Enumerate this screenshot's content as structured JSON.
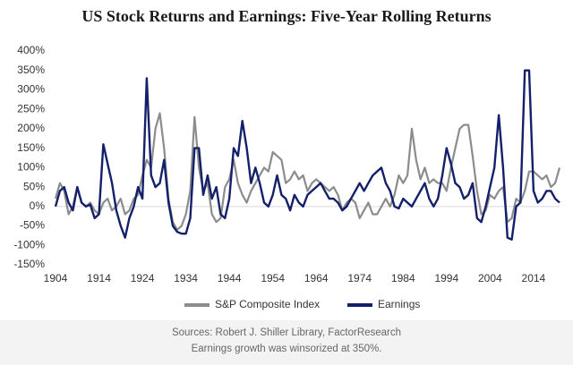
{
  "chart_data": {
    "type": "line",
    "title": "US Stock Returns and Earnings: Five-Year Rolling Returns",
    "x": [
      1904,
      1905,
      1906,
      1907,
      1908,
      1909,
      1910,
      1911,
      1912,
      1913,
      1914,
      1915,
      1916,
      1917,
      1918,
      1919,
      1920,
      1921,
      1922,
      1923,
      1924,
      1925,
      1926,
      1927,
      1928,
      1929,
      1930,
      1931,
      1932,
      1933,
      1934,
      1935,
      1936,
      1937,
      1938,
      1939,
      1940,
      1941,
      1942,
      1943,
      1944,
      1945,
      1946,
      1947,
      1948,
      1949,
      1950,
      1951,
      1952,
      1953,
      1954,
      1955,
      1956,
      1957,
      1958,
      1959,
      1960,
      1961,
      1962,
      1963,
      1964,
      1965,
      1966,
      1967,
      1968,
      1969,
      1970,
      1971,
      1972,
      1973,
      1974,
      1975,
      1976,
      1977,
      1978,
      1979,
      1980,
      1981,
      1982,
      1983,
      1984,
      1985,
      1986,
      1987,
      1988,
      1989,
      1990,
      1991,
      1992,
      1993,
      1994,
      1995,
      1996,
      1997,
      1998,
      1999,
      2000,
      2001,
      2002,
      2003,
      2004,
      2005,
      2006,
      2007,
      2008,
      2009,
      2010,
      2011,
      2012,
      2013,
      2014,
      2015,
      2016,
      2017,
      2018,
      2019,
      2020
    ],
    "series": [
      {
        "name": "S&P Composite Index",
        "color": "#8c8c8c",
        "values": [
          20,
          60,
          40,
          -20,
          0,
          50,
          10,
          0,
          10,
          -10,
          -20,
          10,
          20,
          -10,
          0,
          20,
          -20,
          -10,
          20,
          30,
          80,
          120,
          100,
          200,
          240,
          150,
          20,
          -40,
          -60,
          -50,
          -20,
          40,
          230,
          100,
          40,
          60,
          -20,
          -40,
          -30,
          50,
          70,
          120,
          60,
          30,
          10,
          40,
          60,
          80,
          100,
          90,
          140,
          130,
          120,
          60,
          70,
          90,
          70,
          80,
          40,
          60,
          70,
          60,
          50,
          40,
          50,
          30,
          -10,
          10,
          20,
          10,
          -30,
          -10,
          10,
          -20,
          -20,
          0,
          20,
          0,
          30,
          80,
          60,
          80,
          200,
          120,
          70,
          100,
          60,
          70,
          60,
          60,
          40,
          100,
          150,
          200,
          210,
          210,
          130,
          40,
          -20,
          -10,
          30,
          20,
          40,
          50,
          -40,
          -30,
          20,
          10,
          40,
          90,
          90,
          80,
          70,
          80,
          50,
          60,
          100
        ]
      },
      {
        "name": "Earnings",
        "color": "#14206a",
        "values": [
          0,
          40,
          50,
          10,
          -10,
          50,
          10,
          0,
          5,
          -30,
          -20,
          160,
          110,
          60,
          -10,
          -50,
          -80,
          -30,
          0,
          50,
          20,
          330,
          80,
          50,
          60,
          120,
          10,
          -50,
          -65,
          -70,
          -70,
          -30,
          150,
          150,
          30,
          80,
          20,
          50,
          -20,
          -30,
          20,
          150,
          130,
          220,
          150,
          60,
          100,
          60,
          10,
          0,
          30,
          80,
          30,
          20,
          -10,
          30,
          10,
          0,
          30,
          40,
          50,
          60,
          40,
          20,
          20,
          10,
          -10,
          0,
          20,
          40,
          60,
          40,
          60,
          80,
          90,
          100,
          60,
          40,
          0,
          -5,
          20,
          10,
          0,
          20,
          40,
          60,
          20,
          0,
          20,
          80,
          150,
          110,
          60,
          50,
          20,
          30,
          60,
          -30,
          -40,
          0,
          50,
          100,
          235,
          100,
          -80,
          -85,
          0,
          10,
          350,
          350,
          40,
          10,
          20,
          40,
          40,
          20,
          10
        ]
      }
    ],
    "xlim": [
      1904,
      2020
    ],
    "xticks": [
      1904,
      1914,
      1924,
      1934,
      1944,
      1954,
      1964,
      1974,
      1984,
      1994,
      2004,
      2014
    ],
    "ylim": [
      -150,
      400
    ],
    "yticks": [
      {
        "value": -150,
        "label": "-150%"
      },
      {
        "value": -100,
        "label": "-100%"
      },
      {
        "value": -50,
        "label": "-50%"
      },
      {
        "value": 0,
        "label": "0%"
      },
      {
        "value": 50,
        "label": "50%"
      },
      {
        "value": 100,
        "label": "100%"
      },
      {
        "value": 150,
        "label": "150%"
      },
      {
        "value": 200,
        "label": "200%"
      },
      {
        "value": 250,
        "label": "250%"
      },
      {
        "value": 300,
        "label": "300%"
      },
      {
        "value": 350,
        "label": "350%"
      },
      {
        "value": 400,
        "label": "400%"
      }
    ],
    "notes": [
      "Sources: Robert J. Shiller Library, FactorResearch",
      "Earnings growth was winsorized at 350%."
    ]
  }
}
